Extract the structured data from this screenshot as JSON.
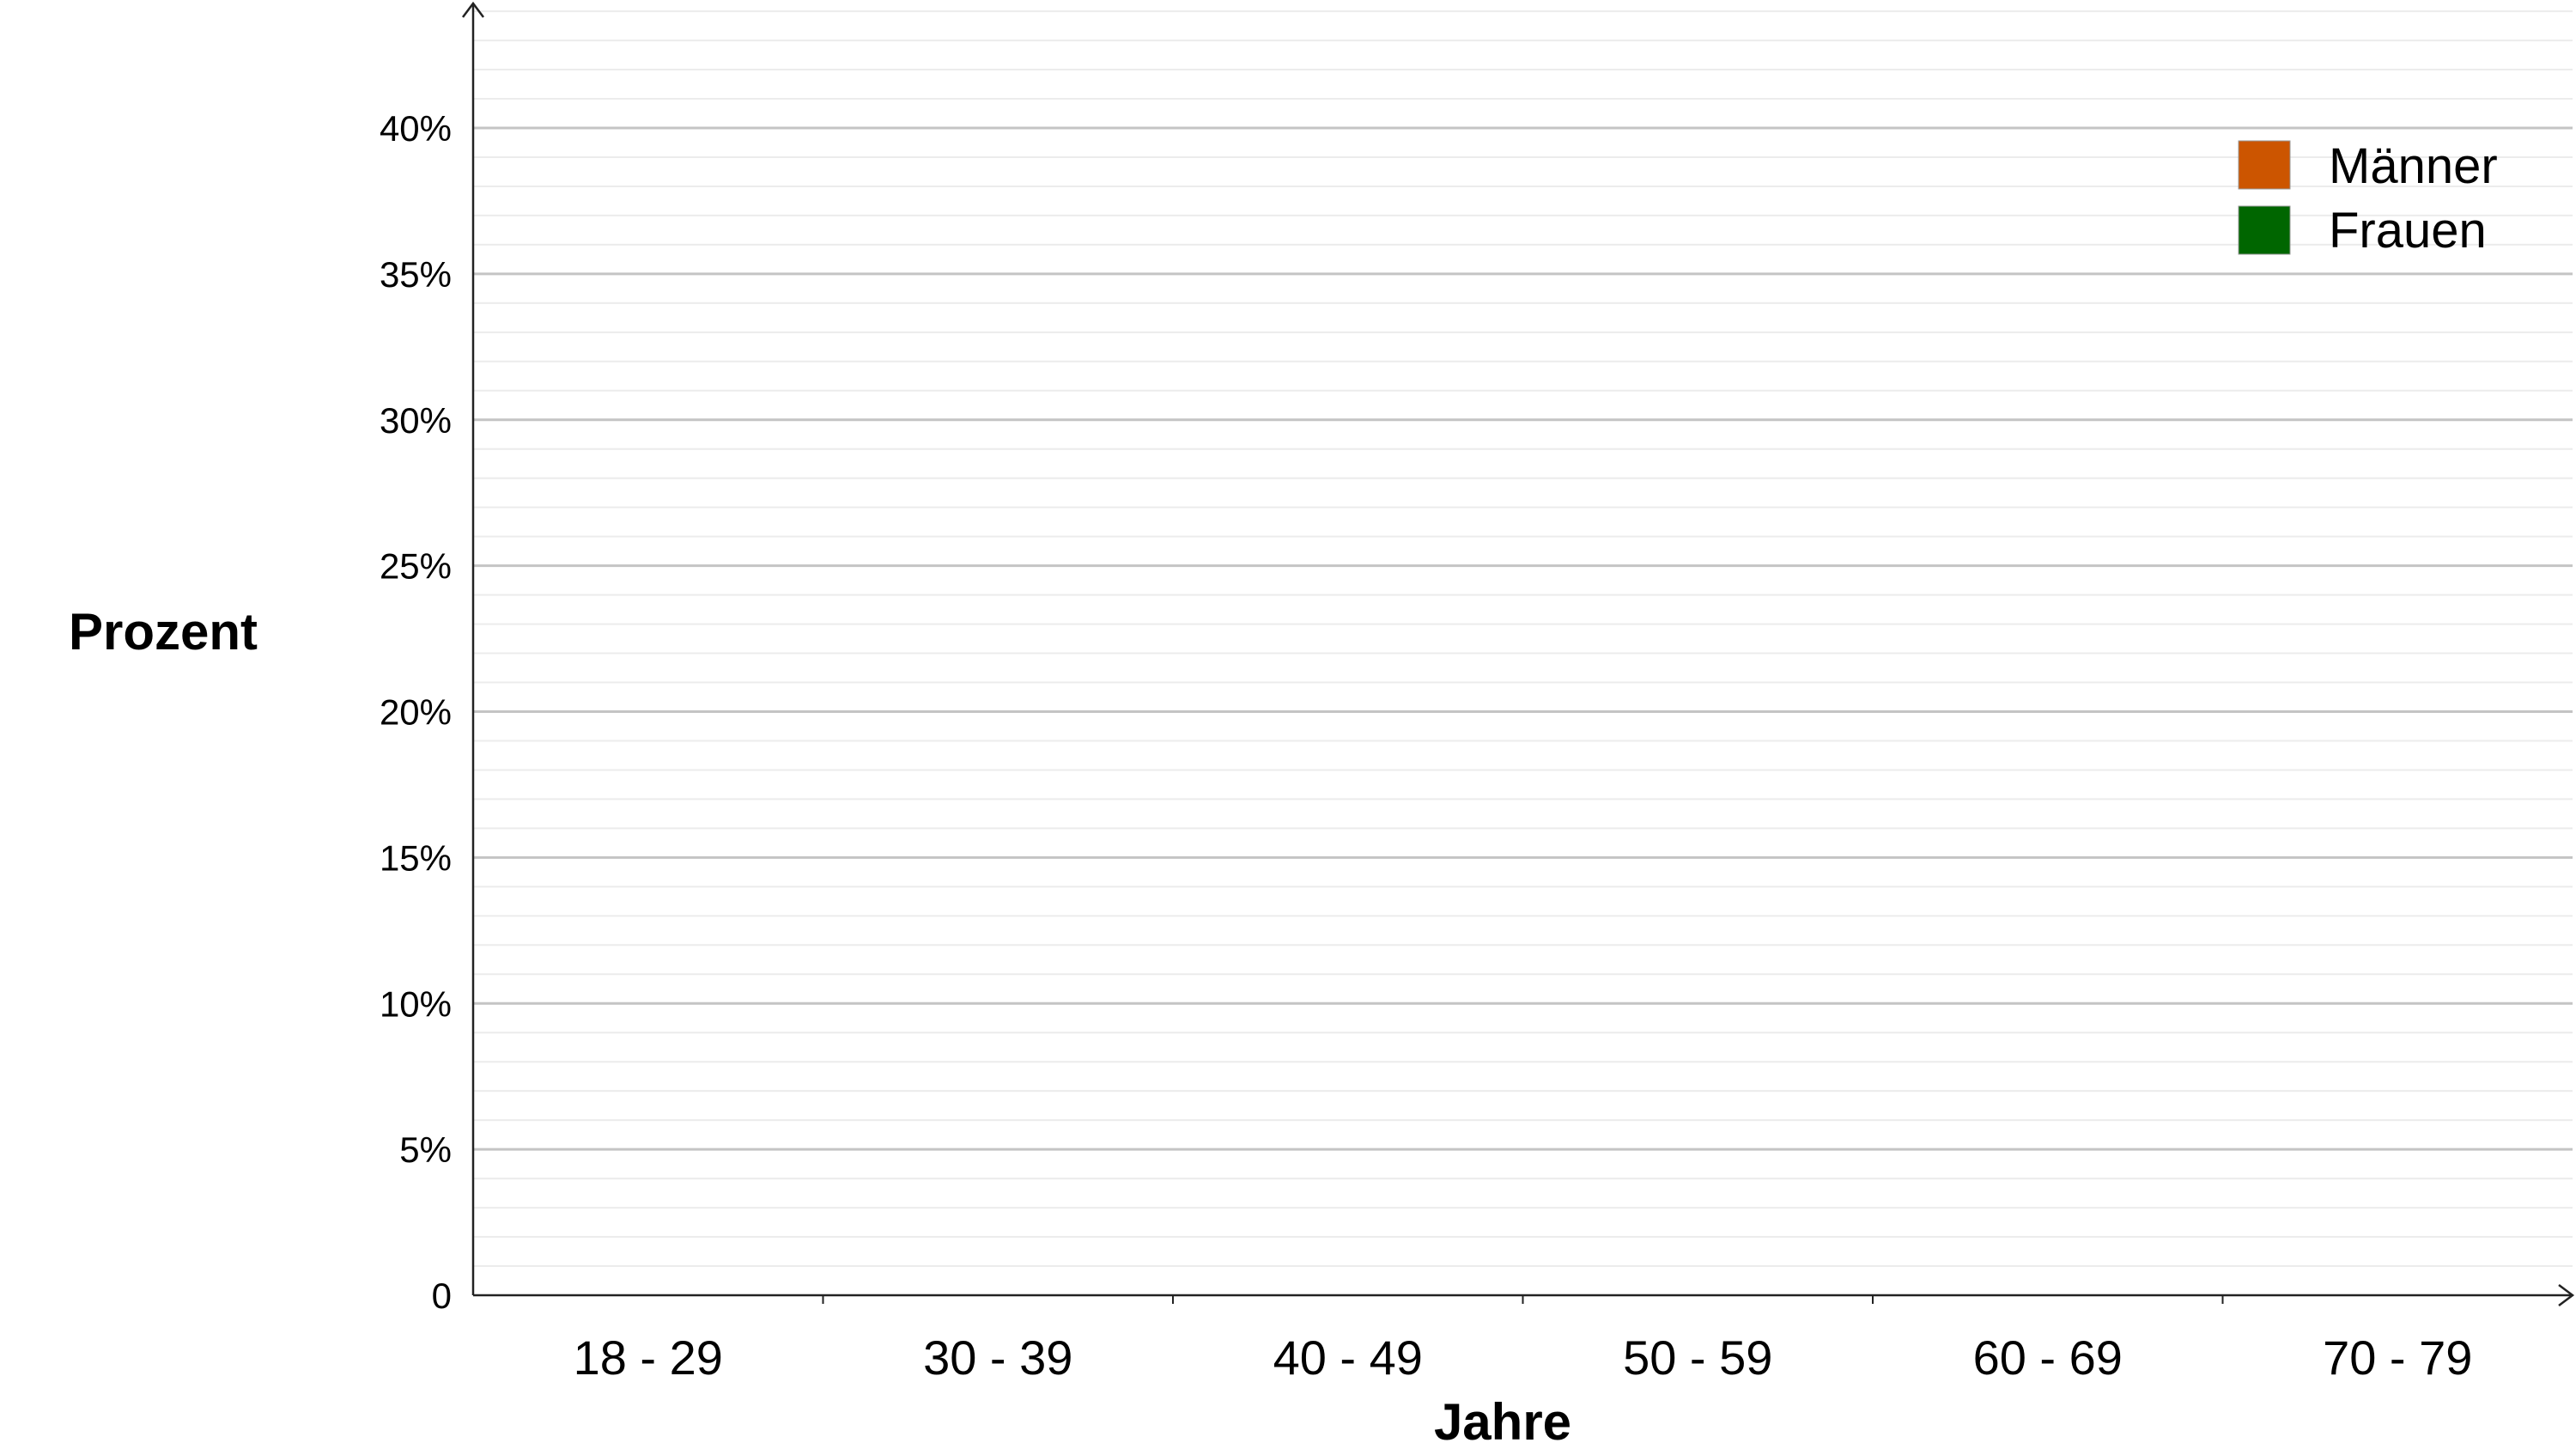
{
  "chart_data": {
    "type": "bar",
    "title": "",
    "ylabel": "Prozent",
    "xlabel": "Jahre",
    "categories": [
      "18 - 29",
      "30 - 39",
      "40 - 49",
      "50 - 59",
      "60 - 69",
      "70 - 79"
    ],
    "y_ticks": [
      0,
      5,
      10,
      15,
      20,
      25,
      30,
      35,
      40
    ],
    "y_tick_labels": [
      "0",
      "5%",
      "10%",
      "15%",
      "20%",
      "25%",
      "30%",
      "35%",
      "40%"
    ],
    "ylim": [
      0,
      44
    ],
    "grid": true,
    "legend_position": "top-right",
    "series": [
      {
        "name": "Männer",
        "color": "#cc5500",
        "values": [
          null,
          null,
          null,
          null,
          null,
          null
        ]
      },
      {
        "name": "Frauen",
        "color": "#006600",
        "values": [
          null,
          null,
          null,
          null,
          null,
          null
        ]
      }
    ]
  }
}
